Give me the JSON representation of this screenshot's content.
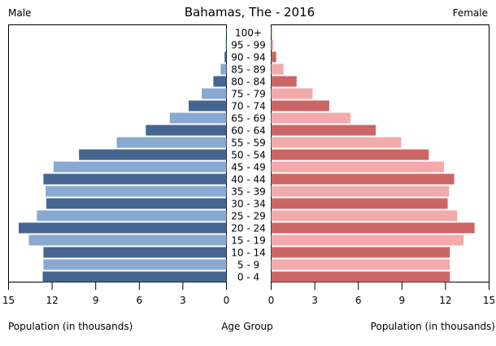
{
  "chart_data": {
    "type": "bar",
    "subtype": "population-pyramid",
    "title": "Bahamas, The - 2016",
    "left_label": "Male",
    "right_label": "Female",
    "xlabel_left": "Population (in thousands)",
    "xlabel_center": "Age Group",
    "xlabel_right": "Population (in thousands)",
    "xlim": [
      0,
      15
    ],
    "ticks_left": [
      "15",
      "12",
      "9",
      "6",
      "3",
      "0"
    ],
    "ticks_right": [
      "0",
      "3",
      "6",
      "9",
      "12",
      "15"
    ],
    "tick_values": [
      15,
      12,
      9,
      6,
      3,
      0
    ],
    "categories": [
      "0 - 4",
      "5 - 9",
      "10 - 14",
      "15 - 19",
      "20 - 24",
      "25 - 29",
      "30 - 34",
      "35 - 39",
      "40 - 44",
      "45 - 49",
      "50 - 54",
      "55 - 59",
      "60 - 64",
      "65 - 69",
      "70 - 74",
      "75 - 79",
      "80 - 84",
      "85 - 89",
      "90 - 94",
      "95 - 99",
      "100+"
    ],
    "series": [
      {
        "name": "Male",
        "values": [
          12.65,
          12.6,
          12.6,
          13.6,
          14.3,
          13.05,
          12.4,
          12.45,
          12.6,
          11.9,
          10.15,
          7.55,
          5.55,
          3.9,
          2.6,
          1.7,
          0.9,
          0.4,
          0.13,
          0.06,
          0.03
        ]
      },
      {
        "name": "Female",
        "values": [
          12.3,
          12.3,
          12.3,
          13.25,
          14.0,
          12.8,
          12.15,
          12.25,
          12.6,
          11.9,
          10.85,
          8.95,
          7.2,
          5.45,
          4.0,
          2.85,
          1.75,
          0.85,
          0.35,
          0.15,
          0.05
        ]
      }
    ],
    "grid": false,
    "colors": {
      "male_dark": "#446690",
      "male_light": "#88a9d0",
      "female_dark": "#cc6666",
      "female_light": "#f2aaaa"
    }
  }
}
